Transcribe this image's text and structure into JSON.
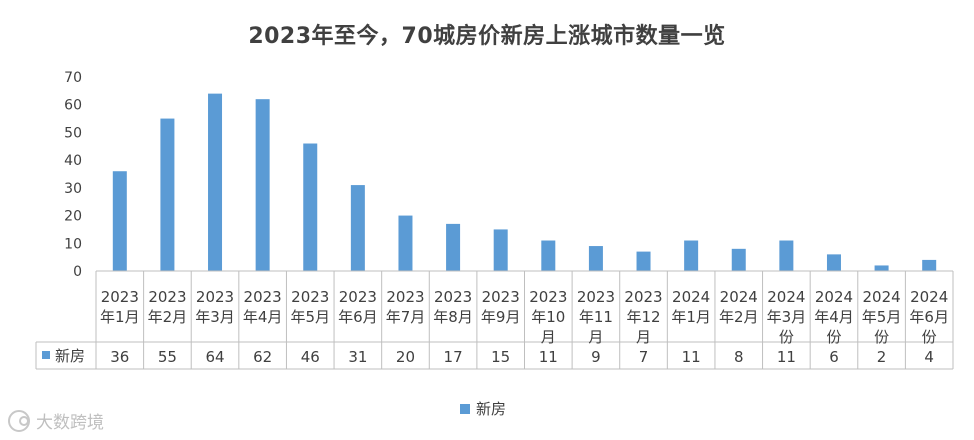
{
  "chart_data": {
    "type": "bar",
    "title": "2023年至今，70城房价新房上涨城市数量一览",
    "categories": [
      "2023年1月",
      "2023年2月",
      "2023年3月",
      "2023年4月",
      "2023年5月",
      "2023年6月",
      "2023年7月",
      "2023年8月",
      "2023年9月",
      "2023年10月",
      "2023年11月",
      "2023年12月",
      "2024年1月",
      "2024年2月",
      "2024年3月份",
      "2024年4月份",
      "2024年5月份",
      "2024年6月份"
    ],
    "category_lines": [
      [
        "2023",
        "年1月"
      ],
      [
        "2023",
        "年2月"
      ],
      [
        "2023",
        "年3月"
      ],
      [
        "2023",
        "年4月"
      ],
      [
        "2023",
        "年5月"
      ],
      [
        "2023",
        "年6月"
      ],
      [
        "2023",
        "年7月"
      ],
      [
        "2023",
        "年8月"
      ],
      [
        "2023",
        "年9月"
      ],
      [
        "2023",
        "年10",
        "月"
      ],
      [
        "2023",
        "年11",
        "月"
      ],
      [
        "2023",
        "年12",
        "月"
      ],
      [
        "2024",
        "年1月"
      ],
      [
        "2024",
        "年2月"
      ],
      [
        "2024",
        "年3月",
        "份"
      ],
      [
        "2024",
        "年4月",
        "份"
      ],
      [
        "2024",
        "年5月",
        "份"
      ],
      [
        "2024",
        "年6月",
        "份"
      ]
    ],
    "series": [
      {
        "name": "新房",
        "values": [
          36,
          55,
          64,
          62,
          46,
          31,
          20,
          17,
          15,
          11,
          9,
          7,
          11,
          8,
          11,
          6,
          2,
          4
        ],
        "color": "#5b9bd5"
      }
    ],
    "ylim": [
      0,
      70
    ],
    "yticks": [
      0,
      10,
      20,
      30,
      40,
      50,
      60,
      70
    ],
    "grid": false,
    "legend": "bottom",
    "data_table": true
  },
  "legend": {
    "label": "新房"
  },
  "watermark": {
    "text": "大数跨境"
  }
}
